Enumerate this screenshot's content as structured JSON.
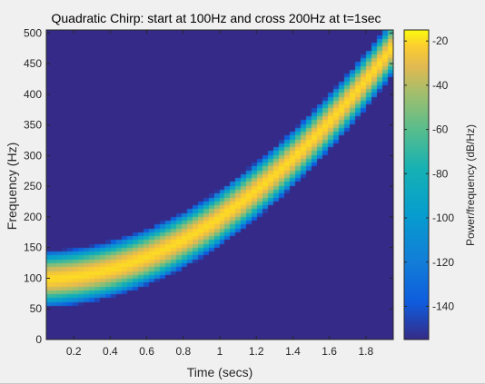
{
  "chart_data": {
    "type": "heatmap",
    "title": "Quadratic Chirp: start at 100Hz and cross 200Hz at t=1sec",
    "xlabel": "Time (secs)",
    "ylabel": "Frequency (Hz)",
    "xlim": [
      0.05,
      1.95
    ],
    "ylim": [
      0,
      505
    ],
    "xticks": [
      0.2,
      0.4,
      0.6,
      0.8,
      1,
      1.2,
      1.4,
      1.6,
      1.8
    ],
    "xtick_labels": [
      "0.2",
      "0.4",
      "0.6",
      "0.8",
      "1",
      "1.2",
      "1.4",
      "1.6",
      "1.8"
    ],
    "yticks": [
      0,
      50,
      100,
      150,
      200,
      250,
      300,
      350,
      400,
      450,
      500
    ],
    "ytick_labels": [
      "0",
      "50",
      "100",
      "150",
      "200",
      "250",
      "300",
      "350",
      "400",
      "450",
      "500"
    ],
    "chirp": {
      "f0_hz": 100,
      "f1_hz": 200,
      "t1_sec": 1,
      "method": "quadratic"
    },
    "colorbar": {
      "label": "Power/frequency (dB/Hz)",
      "range": [
        -155,
        -15
      ],
      "ticks": [
        -20,
        -40,
        -60,
        -80,
        -100,
        -120,
        -140
      ],
      "tick_labels": [
        "-20",
        "-40",
        "-60",
        "-80",
        "-100",
        "-120",
        "-140"
      ]
    },
    "colors": {
      "background_floor": "#352a87",
      "peak": "#f9fb0e",
      "figure_bg": "#f0f0f0"
    },
    "grid": false,
    "colormap": "parula"
  }
}
